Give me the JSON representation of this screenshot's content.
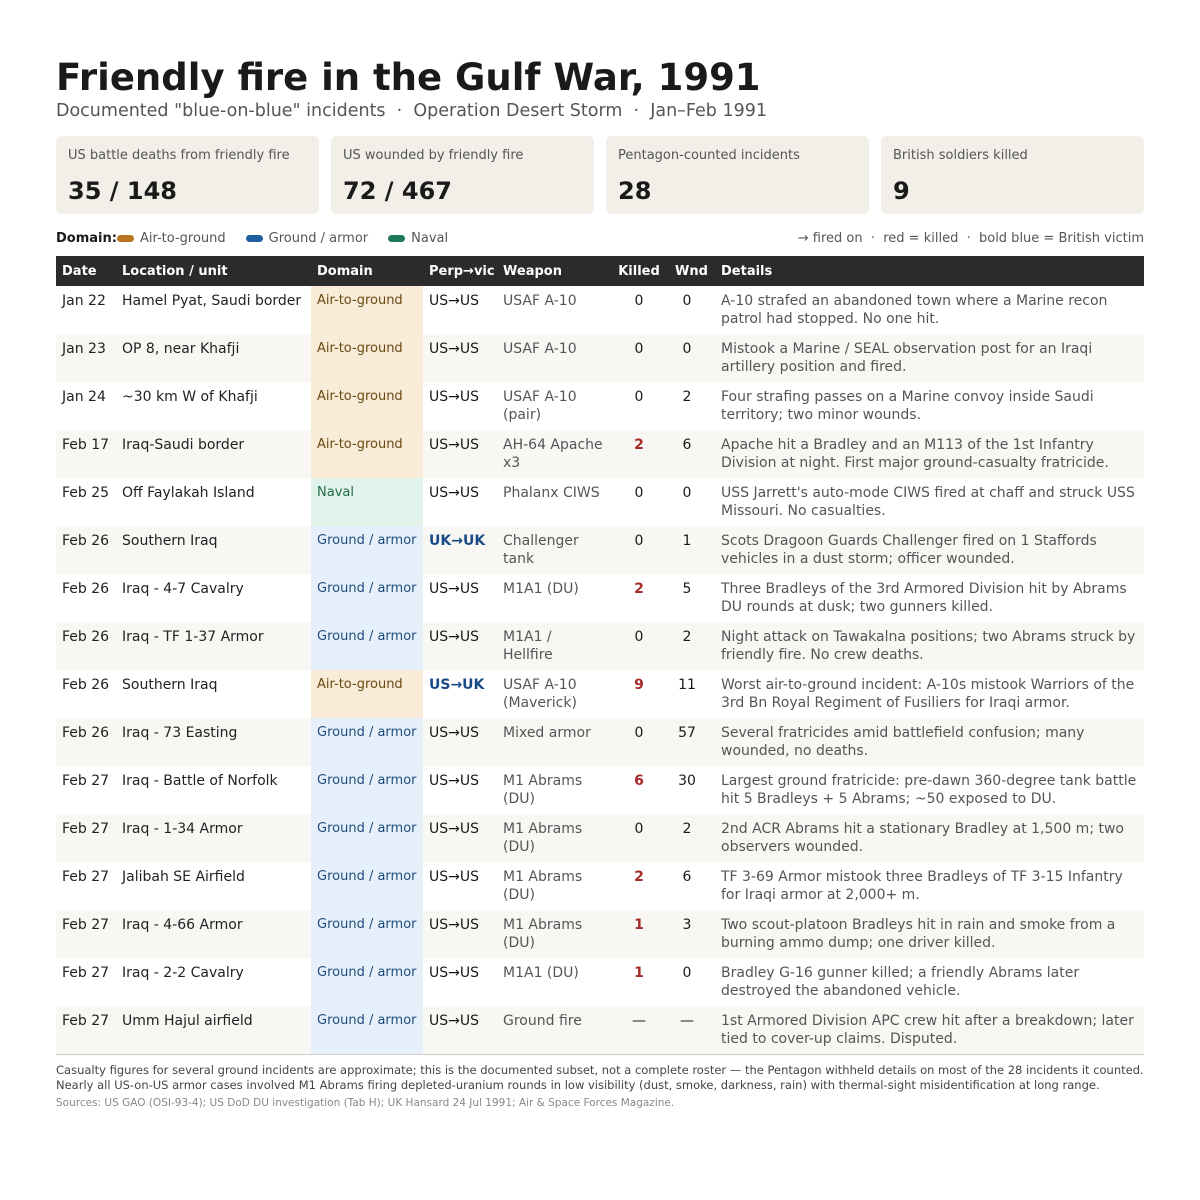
{
  "header": {
    "title": "Friendly fire in the Gulf War, 1991",
    "subtitle": "Documented \"blue-on-blue\" incidents  ·  Operation Desert Storm  ·  Jan–Feb 1991"
  },
  "stats": [
    {
      "label": "US battle deaths from friendly fire",
      "value": "35 / 148"
    },
    {
      "label": "US wounded by friendly fire",
      "value": "72 / 467"
    },
    {
      "label": "Pentagon-counted incidents",
      "value": "28"
    },
    {
      "label": "British soldiers killed",
      "value": "9"
    }
  ],
  "legend": {
    "title": "Domain:",
    "items": [
      {
        "name": "Air-to-ground",
        "color": "#b8761f",
        "cell_color": "#f8ebd8",
        "text_color": "#6b4a12"
      },
      {
        "name": "Ground / armor",
        "color": "#1f5fa0",
        "cell_color": "#e6f0fa",
        "text_color": "#1d4c7a"
      },
      {
        "name": "Naval",
        "color": "#1f7a5a",
        "cell_color": "#e2f3ec",
        "text_color": "#1d6b4a"
      }
    ],
    "note": "→ fired on  ·  red = killed  ·  bold blue = British victim"
  },
  "table": {
    "columns": [
      "Date",
      "Location / unit",
      "Domain",
      "Perp→vic",
      "Weapon",
      "Killed",
      "Wnd",
      "Details"
    ],
    "rows": [
      [
        "Jan 22",
        "Hamel Pyat, Saudi border",
        "Air-to-ground",
        "US→US",
        "USAF A-10",
        0,
        0,
        "A-10 strafed an abandoned town where a Marine recon patrol had stopped. No one hit."
      ],
      [
        "Jan 23",
        "OP 8, near Khafji",
        "Air-to-ground",
        "US→US",
        "USAF A-10",
        0,
        0,
        "Mistook a Marine / SEAL observation post for an Iraqi artillery position and fired."
      ],
      [
        "Jan 24",
        "~30 km W of Khafji",
        "Air-to-ground",
        "US→US",
        "USAF A-10 (pair)",
        0,
        2,
        "Four strafing passes on a Marine convoy inside Saudi territory; two minor wounds."
      ],
      [
        "Feb 17",
        "Iraq-Saudi border",
        "Air-to-ground",
        "US→US",
        "AH-64 Apache x3",
        2,
        6,
        "Apache hit a Bradley and an M113 of the 1st Infantry Division at night. First major ground-casualty fratricide."
      ],
      [
        "Feb 25",
        "Off Faylakah Island",
        "Naval",
        "US→US",
        "Phalanx CIWS",
        0,
        0,
        "USS Jarrett's auto-mode CIWS fired at chaff and struck USS Missouri. No casualties."
      ],
      [
        "Feb 26",
        "Southern Iraq",
        "Ground / armor",
        "UK→UK",
        "Challenger tank",
        0,
        1,
        "Scots Dragoon Guards Challenger fired on 1 Staffords vehicles in a dust storm; officer wounded."
      ],
      [
        "Feb 26",
        "Iraq - 4-7 Cavalry",
        "Ground / armor",
        "US→US",
        "M1A1 (DU)",
        2,
        5,
        "Three Bradleys of the 3rd Armored Division hit by Abrams DU rounds at dusk; two gunners killed."
      ],
      [
        "Feb 26",
        "Iraq - TF 1-37 Armor",
        "Ground / armor",
        "US→US",
        "M1A1 / Hellfire",
        0,
        2,
        "Night attack on Tawakalna positions; two Abrams struck by friendly fire. No crew deaths."
      ],
      [
        "Feb 26",
        "Southern Iraq",
        "Air-to-ground",
        "US→UK",
        "USAF A-10 (Maverick)",
        9,
        11,
        "Worst air-to-ground incident: A-10s mistook Warriors of the 3rd Bn Royal Regiment of Fusiliers for Iraqi armor."
      ],
      [
        "Feb 26",
        "Iraq - 73 Easting",
        "Ground / armor",
        "US→US",
        "Mixed armor",
        0,
        57,
        "Several fratricides amid battlefield confusion; many wounded, no deaths."
      ],
      [
        "Feb 27",
        "Iraq - Battle of Norfolk",
        "Ground / armor",
        "US→US",
        "M1 Abrams (DU)",
        6,
        30,
        "Largest ground fratricide: pre-dawn 360-degree tank battle hit 5 Bradleys + 5 Abrams; ~50 exposed to DU."
      ],
      [
        "Feb 27",
        "Iraq - 1-34 Armor",
        "Ground / armor",
        "US→US",
        "M1 Abrams (DU)",
        0,
        2,
        "2nd ACR Abrams hit a stationary Bradley at 1,500 m; two observers wounded."
      ],
      [
        "Feb 27",
        "Jalibah SE Airfield",
        "Ground / armor",
        "US→US",
        "M1 Abrams (DU)",
        2,
        6,
        "TF 3-69 Armor mistook three Bradleys of TF 3-15 Infantry for Iraqi armor at 2,000+ m."
      ],
      [
        "Feb 27",
        "Iraq - 4-66 Armor",
        "Ground / armor",
        "US→US",
        "M1 Abrams (DU)",
        1,
        3,
        "Two scout-platoon Bradleys hit in rain and smoke from a burning ammo dump; one driver killed."
      ],
      [
        "Feb 27",
        "Iraq - 2-2 Cavalry",
        "Ground / armor",
        "US→US",
        "M1A1 (DU)",
        1,
        0,
        "Bradley G-16 gunner killed; a friendly Abrams later destroyed the abandoned vehicle."
      ],
      [
        "Feb 27",
        "Umm Hajul airfield",
        "Ground / armor",
        "US→US",
        "Ground fire",
        "—",
        "—",
        "1st Armored Division APC crew hit after a breakdown; later tied to cover-up claims. Disputed."
      ]
    ]
  },
  "footer": {
    "notes": [
      "Casualty figures for several ground incidents are approximate; this is the documented subset, not a complete roster — the Pentagon withheld details on most of the 28 incidents it counted.",
      "Nearly all US-on-US armor cases involved M1 Abrams firing depleted-uranium rounds in low visibility (dust, smoke, darkness, rain) with thermal-sight misidentification at long range."
    ],
    "sources": "Sources: US GAO (OSI-93-4); US DoD DU investigation (Tab H); UK Hansard 24 Jul 1991; Air & Space Forces Magazine."
  }
}
